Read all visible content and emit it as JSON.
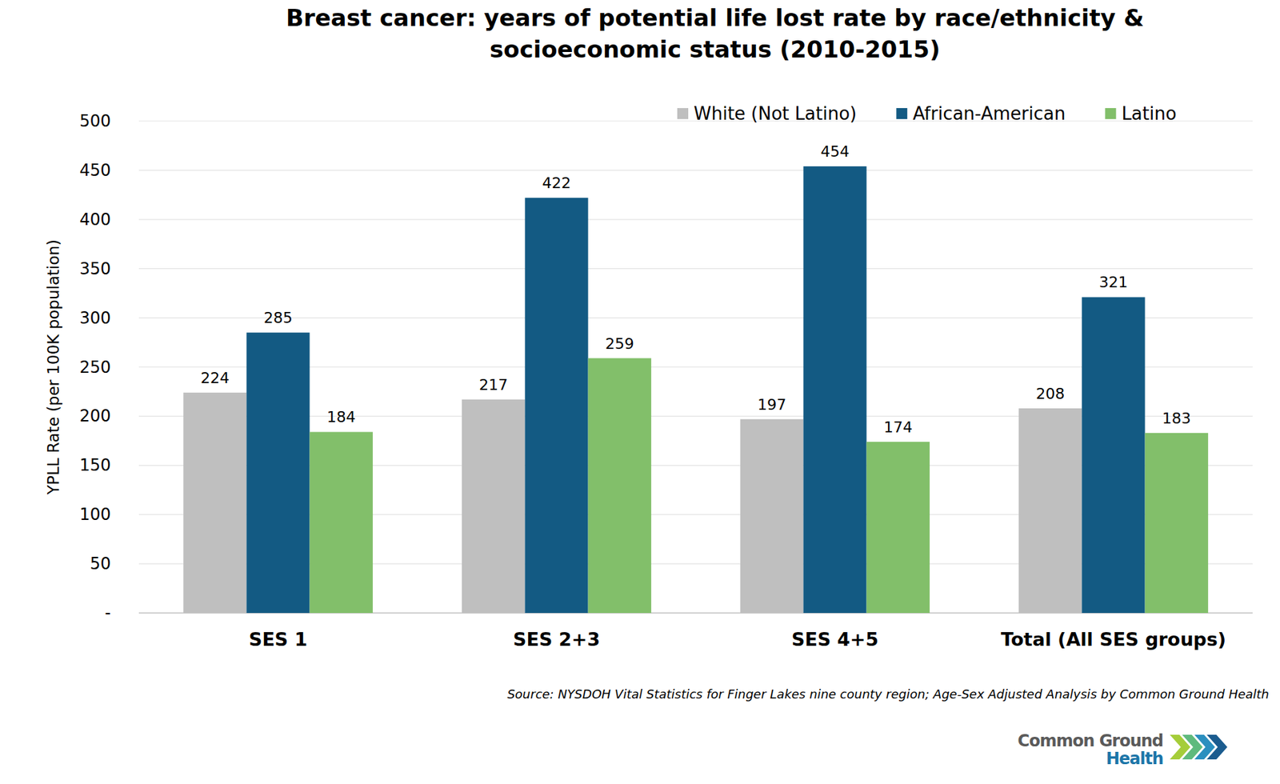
{
  "chart_data": {
    "type": "bar",
    "title": "Breast cancer: years of potential life lost rate by race/ethnicity & socioeconomic status (2010-2015)",
    "y_label": "YPLL Rate (per 100K population)",
    "categories": [
      "SES 1",
      "SES 2+3",
      "SES 4+5",
      "Total (All SES groups)"
    ],
    "series": [
      {
        "name": "White (Not Latino)",
        "color": "#bfbfbf",
        "values": [
          224,
          217,
          197,
          208
        ]
      },
      {
        "name": "African-American",
        "color": "#135a83",
        "values": [
          285,
          422,
          454,
          321
        ]
      },
      {
        "name": "Latino",
        "color": "#82bf6a",
        "values": [
          184,
          259,
          174,
          183
        ]
      }
    ],
    "ylim": [
      0,
      500
    ],
    "yticks": [
      {
        "value": 0,
        "label": "-"
      },
      50,
      100,
      150,
      200,
      250,
      300,
      350,
      400,
      450,
      500
    ],
    "grid": true,
    "legend": "top",
    "data_labels": true,
    "source": "Source: NYSDOH Vital Statistics for Finger Lakes nine county region; Age-Sex Adjusted Analysis by Common Ground Health",
    "brand": [
      "Common Ground",
      "Health"
    ]
  }
}
